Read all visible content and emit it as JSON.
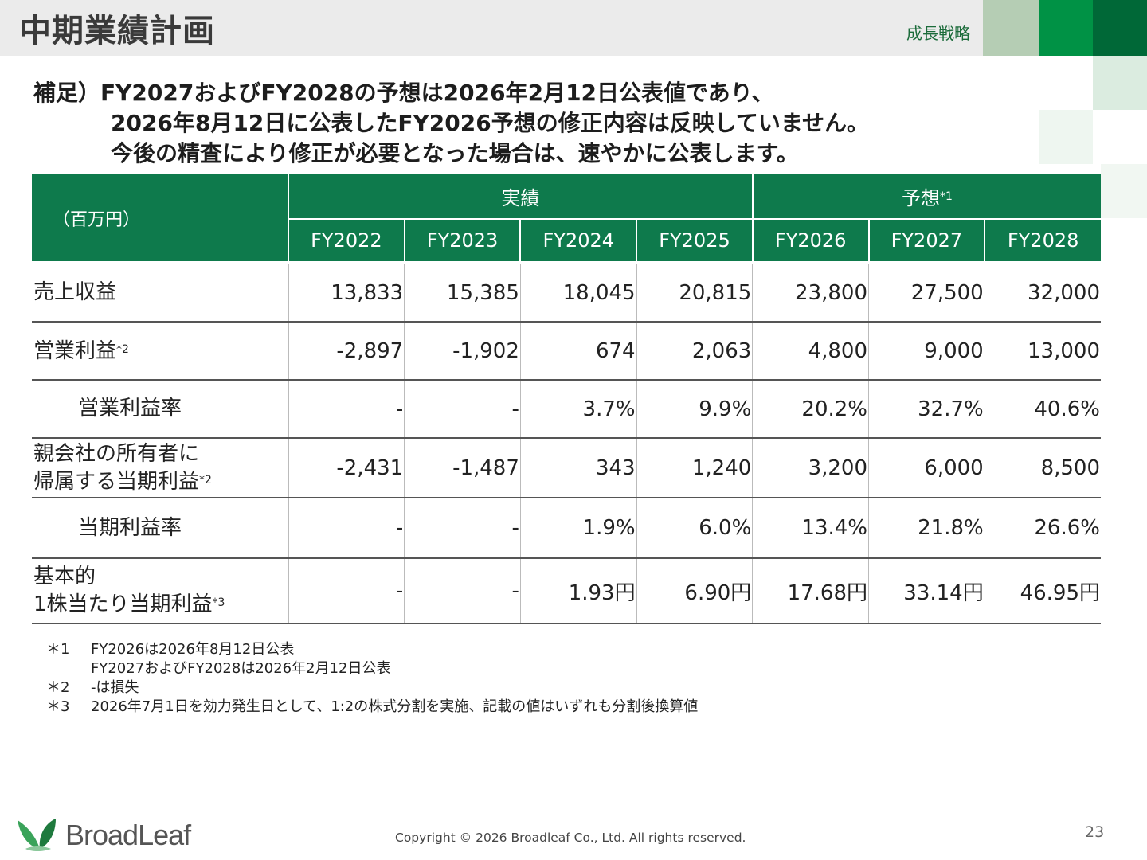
{
  "header": {
    "title": "中期業績計画",
    "section": "成長戦略"
  },
  "note": {
    "line1": "補足）FY2027およびFY2028の予想は2026年2月12日公表値であり、",
    "line2": "2026年8月12日に公表したFY2026予想の修正内容は反映していません。",
    "line3": "今後の精査により修正が必要となった場合は、速やかに公表します。"
  },
  "table": {
    "unit": "（百万円）",
    "group_actual": "実績",
    "group_forecast": "予想",
    "group_forecast_mark": "*1",
    "years": [
      "FY2022",
      "FY2023",
      "FY2024",
      "FY2025",
      "FY2026",
      "FY2027",
      "FY2028"
    ],
    "rows": [
      {
        "label": "売上収益",
        "values": [
          "13,833",
          "15,385",
          "18,045",
          "20,815",
          "23,800",
          "27,500",
          "32,000"
        ]
      },
      {
        "label": "営業利益",
        "mark": "*2",
        "values": [
          "-2,897",
          "-1,902",
          "674",
          "2,063",
          "4,800",
          "9,000",
          "13,000"
        ]
      },
      {
        "label": "営業利益率",
        "values": [
          "-",
          "-",
          "3.7%",
          "9.9%",
          "20.2%",
          "32.7%",
          "40.6%"
        ]
      },
      {
        "label_line1": "親会社の所有者に",
        "label_line2": "帰属する当期利益",
        "mark": "*2",
        "values": [
          "-2,431",
          "-1,487",
          "343",
          "1,240",
          "3,200",
          "6,000",
          "8,500"
        ]
      },
      {
        "label": "当期利益率",
        "values": [
          "-",
          "-",
          "1.9%",
          "6.0%",
          "13.4%",
          "21.8%",
          "26.6%"
        ]
      },
      {
        "label_line1": "基本的",
        "label_line2": "1株当たり当期利益",
        "mark": "*3",
        "values": [
          "-",
          "-",
          "1.93円",
          "6.90円",
          "17.68円",
          "33.14円",
          "46.95円"
        ]
      }
    ]
  },
  "footnotes": [
    {
      "mark": "＊1",
      "text": "FY2026は2026年8月12日公表"
    },
    {
      "mark": "",
      "text": "FY2027およびFY2028は2026年2月12日公表"
    },
    {
      "mark": "＊2",
      "text": "-は損失"
    },
    {
      "mark": "＊3",
      "text": "2026年7月1日を効力発生日として、1:2の株式分割を実施、記載の値はいずれも分割後換算値"
    }
  ],
  "footer": {
    "logo_text": "BroadLeaf",
    "copyright": "Copyright © 2026 Broadleaf Co., Ltd. All rights reserved.",
    "page_number": "23"
  },
  "colors": {
    "brand_green": "#0e7a4c",
    "accent_dark_green": "#006837",
    "header_bg": "#ebebeb"
  }
}
